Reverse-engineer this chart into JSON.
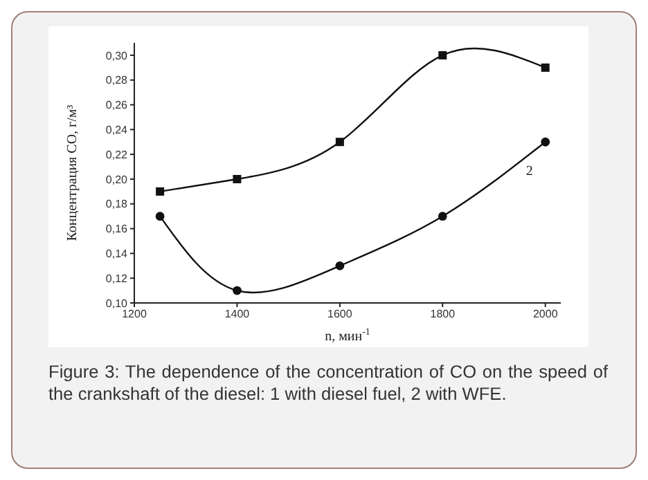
{
  "chart_data": {
    "type": "line",
    "xlabel": "n, мин$^{-1}$",
    "ylabel": "Концентрация CO, г/м³",
    "x": [
      1250,
      1400,
      1600,
      1800,
      2000
    ],
    "series": [
      {
        "color": "#111111",
        "marker": "square",
        "values": [
          0.19,
          0.2,
          0.23,
          0.3,
          0.29
        ]
      },
      {
        "name": "2",
        "color": "#111111",
        "marker": "circle",
        "values": [
          0.17,
          0.11,
          0.13,
          0.17,
          0.23
        ]
      }
    ],
    "xlim": [
      1200,
      2030
    ],
    "xticks": [
      1200,
      1400,
      1600,
      1800,
      2000
    ],
    "ylim": [
      0.1,
      0.31
    ],
    "yticks": [
      {
        "value": 0.1,
        "label": "0,10"
      },
      {
        "value": 0.12,
        "label": "0,12"
      },
      {
        "value": 0.14,
        "label": "0,14"
      },
      {
        "value": 0.16,
        "label": "0,16"
      },
      {
        "value": 0.18,
        "label": "0,18"
      },
      {
        "value": 0.2,
        "label": "0,20"
      },
      {
        "value": 0.22,
        "label": "0,22"
      },
      {
        "value": 0.24,
        "label": "0,24"
      },
      {
        "value": 0.26,
        "label": "0,26"
      },
      {
        "value": 0.28,
        "label": "0,28"
      },
      {
        "value": 0.3,
        "label": "0,30"
      }
    ],
    "grid": false,
    "legend": false,
    "annotations": [
      "Figure 3: The dependence of the concentration of CO on the speed of the crankshaft of the diesel: 1 with diesel fuel, 2 with WFE."
    ]
  }
}
